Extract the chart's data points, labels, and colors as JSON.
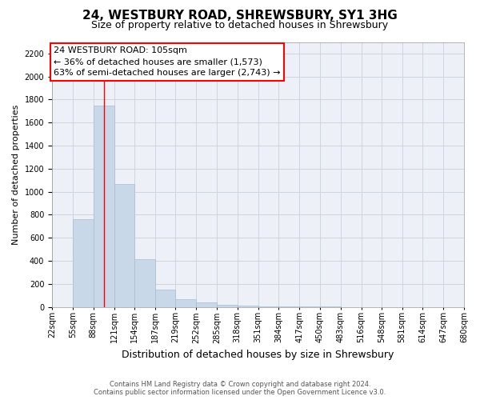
{
  "title": "24, WESTBURY ROAD, SHREWSBURY, SY1 3HG",
  "subtitle": "Size of property relative to detached houses in Shrewsbury",
  "xlabel": "Distribution of detached houses by size in Shrewsbury",
  "ylabel": "Number of detached properties",
  "footer_line1": "Contains HM Land Registry data © Crown copyright and database right 2024.",
  "footer_line2": "Contains public sector information licensed under the Open Government Licence v3.0.",
  "annotation_line1": "24 WESTBURY ROAD: 105sqm",
  "annotation_line2": "← 36% of detached houses are smaller (1,573)",
  "annotation_line3": "63% of semi-detached houses are larger (2,743) →",
  "bar_color": "#c8d8e8",
  "bar_edge_color": "#a8bccf",
  "red_line_x": 105,
  "bin_edges": [
    22,
    55,
    88,
    121,
    154,
    187,
    219,
    252,
    285,
    318,
    351,
    384,
    417,
    450,
    483,
    516,
    548,
    581,
    614,
    647,
    680
  ],
  "bar_heights": [
    0,
    760,
    1750,
    1070,
    415,
    150,
    65,
    40,
    20,
    10,
    5,
    3,
    2,
    1,
    0,
    0,
    0,
    0,
    0,
    0
  ],
  "ylim": [
    0,
    2300
  ],
  "yticks": [
    0,
    200,
    400,
    600,
    800,
    1000,
    1200,
    1400,
    1600,
    1800,
    2000,
    2200
  ],
  "grid_color": "#ccd5e0",
  "background_color": "#edf1f7",
  "title_fontsize": 11,
  "subtitle_fontsize": 9,
  "ylabel_fontsize": 8,
  "xlabel_fontsize": 9,
  "tick_fontsize": 7,
  "annot_fontsize": 8
}
